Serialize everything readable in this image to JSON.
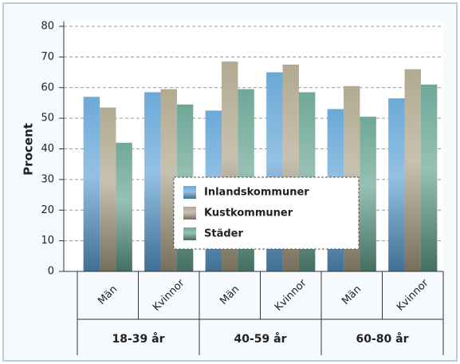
{
  "chart_data": {
    "type": "bar",
    "y_label": "Procent",
    "categories": [
      "Män",
      "Kvinnor",
      "Män",
      "Kvinnor",
      "Män",
      "Kvinnor"
    ],
    "groups": [
      "18-39 år",
      "40-59 år",
      "60-80 år"
    ],
    "series": [
      {
        "name": "Inlandskommuner",
        "color": "#5a9fd4",
        "values": [
          57,
          58.5,
          52.5,
          65,
          53,
          56.5
        ]
      },
      {
        "name": "Kustkommuner",
        "color": "#a99f84",
        "values": [
          53.5,
          59.5,
          68.5,
          67.5,
          60.5,
          66
        ]
      },
      {
        "name": "Städer",
        "color": "#5f9e8c",
        "values": [
          42,
          54.5,
          59.5,
          58.5,
          50.5,
          61
        ]
      }
    ],
    "ylim": [
      0,
      80
    ],
    "yticks": [
      0,
      10,
      20,
      30,
      40,
      50,
      60,
      70,
      80
    ],
    "grid": true,
    "legend": "center"
  }
}
